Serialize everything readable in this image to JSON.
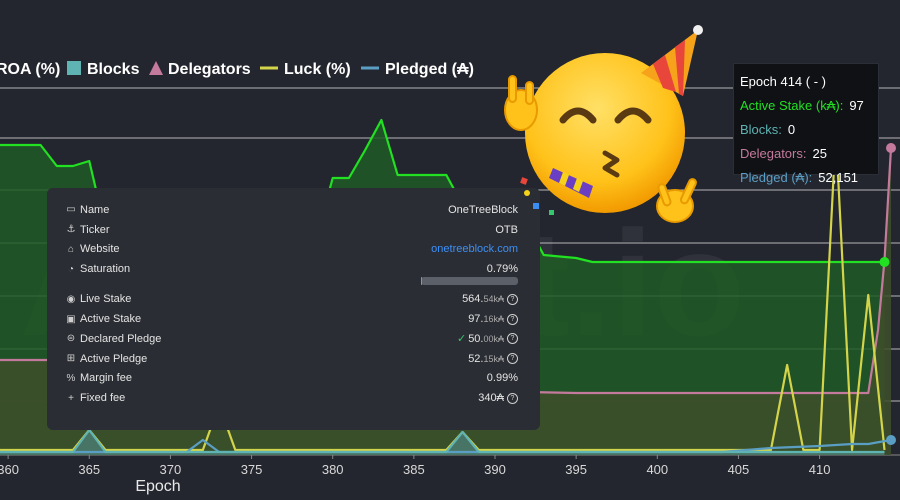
{
  "chart_data": {
    "type": "line",
    "xlabel": "Epoch",
    "x_ticks": [
      360,
      365,
      370,
      375,
      380,
      385,
      390,
      395,
      400,
      405,
      410
    ],
    "x_range": [
      359.5,
      414.4
    ],
    "legend": [
      {
        "label": "ROA (%)",
        "marker": "none"
      },
      {
        "label": "Blocks",
        "marker": "square",
        "color": "#5fb3b3"
      },
      {
        "label": "Delegators",
        "marker": "triangle",
        "color": "#c47a9c"
      },
      {
        "label": "Luck (%)",
        "marker": "line",
        "color": "#d4d44a"
      },
      {
        "label": "Pledged (₳)",
        "marker": "line",
        "color": "#5b9ec4"
      }
    ],
    "series": [
      {
        "name": "Active Stake (k₳)",
        "color": "#22e022",
        "fill": "#1f5a25",
        "points": [
          [
            359.5,
            145
          ],
          [
            362,
            145
          ],
          [
            363,
            166
          ],
          [
            364,
            166
          ],
          [
            365,
            161
          ],
          [
            366,
            230
          ],
          [
            367,
            230
          ],
          [
            368,
            216
          ],
          [
            369,
            217
          ],
          [
            370,
            246
          ],
          [
            374,
            246
          ],
          [
            375,
            238
          ],
          [
            379,
            238
          ],
          [
            380,
            178
          ],
          [
            381,
            178
          ],
          [
            382,
            150
          ],
          [
            383,
            120
          ],
          [
            384,
            175
          ],
          [
            387,
            175
          ],
          [
            388,
            205
          ],
          [
            391,
            210
          ],
          [
            392,
            225
          ],
          [
            393,
            255
          ],
          [
            395,
            258
          ],
          [
            396,
            262
          ],
          [
            414,
            262
          ]
        ]
      },
      {
        "name": "Delegators",
        "color": "#c47a9c",
        "fill": "#3e4f2a",
        "points": [
          [
            359.5,
            360
          ],
          [
            370,
            360
          ],
          [
            375,
            372
          ],
          [
            380,
            380
          ],
          [
            385,
            385
          ],
          [
            390,
            390
          ],
          [
            392,
            392
          ],
          [
            395,
            393
          ],
          [
            410,
            393
          ],
          [
            413,
            393
          ],
          [
            413.6,
            330
          ],
          [
            414,
            260
          ],
          [
            414.4,
            148
          ]
        ]
      },
      {
        "name": "Luck (%)",
        "color": "#d4d44a",
        "points": [
          [
            359.5,
            450
          ],
          [
            364,
            450
          ],
          [
            365,
            430
          ],
          [
            366,
            450
          ],
          [
            372,
            450
          ],
          [
            373,
            405
          ],
          [
            374,
            450
          ],
          [
            387,
            450
          ],
          [
            388,
            432
          ],
          [
            389,
            450
          ],
          [
            407,
            450
          ],
          [
            408,
            365
          ],
          [
            409,
            450
          ],
          [
            410,
            450
          ],
          [
            411,
            132
          ],
          [
            412,
            450
          ],
          [
            413,
            295
          ],
          [
            414,
            450
          ]
        ]
      },
      {
        "name": "Pledged (₳)",
        "color": "#5b9ec4",
        "points": [
          [
            359.5,
            452
          ],
          [
            371,
            452
          ],
          [
            372,
            440
          ],
          [
            373,
            452
          ],
          [
            404,
            452
          ],
          [
            407,
            448
          ],
          [
            410,
            446
          ],
          [
            412,
            444
          ],
          [
            413,
            444
          ],
          [
            414.4,
            440
          ]
        ]
      },
      {
        "name": "Blocks",
        "color": "#5fb3b3",
        "fill": "#4a7a6e",
        "points": [
          [
            359.5,
            452
          ],
          [
            364,
            452
          ],
          [
            365,
            430
          ],
          [
            366,
            452
          ],
          [
            387,
            452
          ],
          [
            388,
            432
          ],
          [
            389,
            452
          ],
          [
            414,
            452
          ]
        ]
      }
    ]
  },
  "watermark": "Adastat.io",
  "tooltip": {
    "title": "Epoch 414 ( - )",
    "rows": [
      {
        "label": "Active Stake (k₳):",
        "value": "97"
      },
      {
        "label": "Blocks:",
        "value": "0"
      },
      {
        "label": "Delegators:",
        "value": "25"
      },
      {
        "label": "Pledged (₳):",
        "value": "52,151"
      }
    ]
  },
  "pool": {
    "name_label": "Name",
    "name": "OneTreeBlock",
    "ticker_label": "Ticker",
    "ticker": "OTB",
    "website_label": "Website",
    "website": "onetreeblock.com",
    "saturation_label": "Saturation",
    "saturation": "0.79%",
    "saturation_fraction": 0.0079,
    "live_stake_label": "Live Stake",
    "live_stake": "564.",
    "live_stake_unit": "54k₳",
    "active_stake_label": "Active Stake",
    "active_stake": "97.",
    "active_stake_unit": "16k₳",
    "declared_pledge_label": "Declared Pledge",
    "declared_pledge": "50.",
    "declared_pledge_unit": "00k₳",
    "active_pledge_label": "Active Pledge",
    "active_pledge": "52.",
    "active_pledge_unit": "15k₳",
    "margin_label": "Margin fee",
    "margin": "0.99%",
    "fixed_label": "Fixed fee",
    "fixed": "340₳"
  }
}
